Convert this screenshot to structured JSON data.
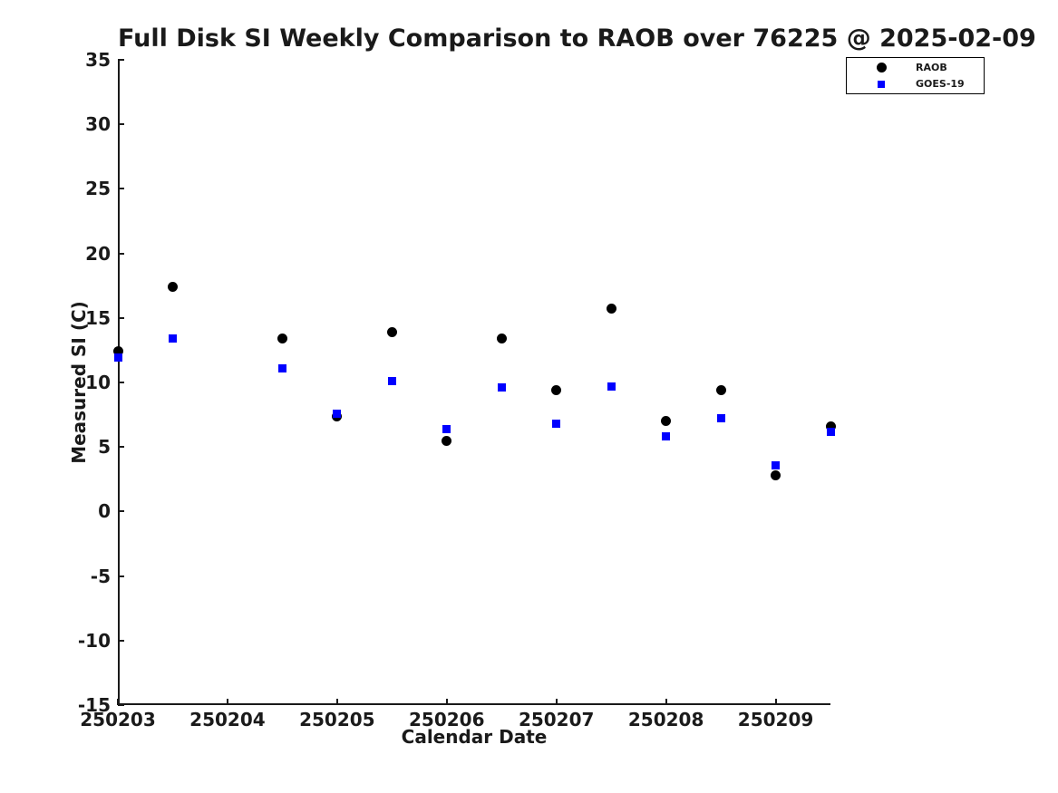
{
  "chart_data": {
    "type": "scatter",
    "title": "Full Disk SI Weekly Comparison to RAOB over 76225 @ 2025-02-09",
    "xlabel": "Calendar Date",
    "ylabel": "Measured SI (C)",
    "x_tick_labels": [
      "250203",
      "250204",
      "250205",
      "250206",
      "250207",
      "250208",
      "250209"
    ],
    "y_ticks": [
      -15,
      -10,
      -5,
      0,
      5,
      10,
      15,
      20,
      25,
      30,
      35
    ],
    "ylim": [
      -15,
      35
    ],
    "xlim_days_since_250203": [
      0,
      6.5
    ],
    "x_days_since_250203": [
      0,
      0.5,
      1.5,
      2,
      2.5,
      3,
      3.5,
      4,
      4.5,
      5,
      5.5,
      6,
      6.5
    ],
    "series": [
      {
        "name": "RAOB",
        "marker": "circle",
        "color": "#000000",
        "values": [
          12.4,
          17.4,
          13.4,
          7.4,
          13.9,
          5.5,
          13.4,
          9.4,
          15.7,
          7.0,
          9.4,
          2.8,
          6.6
        ]
      },
      {
        "name": "GOES-19",
        "marker": "square",
        "color": "#0000ff",
        "values": [
          11.9,
          13.4,
          11.1,
          7.6,
          10.1,
          6.4,
          9.6,
          6.8,
          9.7,
          5.8,
          7.2,
          3.6,
          6.2
        ]
      }
    ],
    "legend_position": "top-right",
    "grid": false,
    "axis_color": "#1a1a1a",
    "background_color": "#ffffff"
  }
}
